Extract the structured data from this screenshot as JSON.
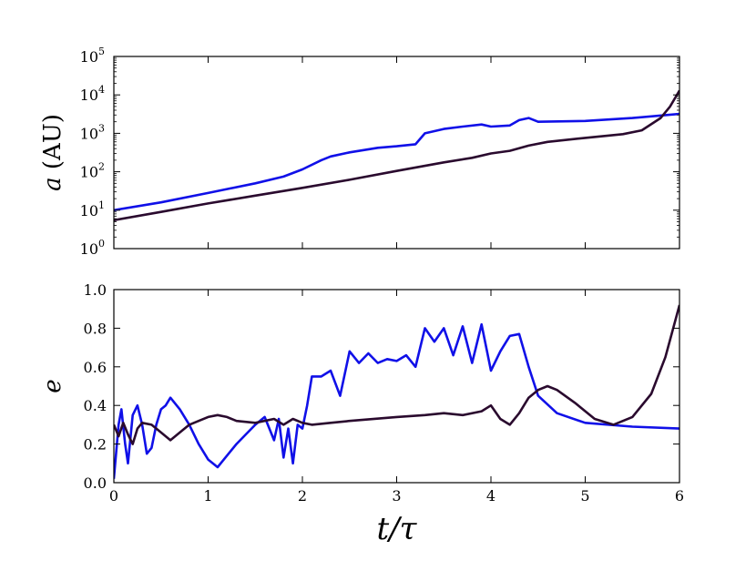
{
  "colors": {
    "series1": "#1010e8",
    "series2": "#2a0a2e"
  },
  "chart_data": [
    {
      "type": "line",
      "xlim": [
        0,
        6
      ],
      "ylim_log10": [
        0,
        5
      ],
      "yscale": "log",
      "ylabel_italic": "a",
      "ylabel_rest": " (AU)",
      "xlabel": "",
      "xticks": [
        0,
        1,
        2,
        3,
        4,
        5,
        6
      ],
      "yticks": [
        {
          "base": "10",
          "exp": "0",
          "v": 0
        },
        {
          "base": "10",
          "exp": "1",
          "v": 1
        },
        {
          "base": "10",
          "exp": "2",
          "v": 2
        },
        {
          "base": "10",
          "exp": "3",
          "v": 3
        },
        {
          "base": "10",
          "exp": "4",
          "v": 4
        },
        {
          "base": "10",
          "exp": "5",
          "v": 5
        }
      ],
      "grid": false,
      "series": [
        {
          "color": "#1010e8",
          "points": [
            [
              0,
              10
            ],
            [
              0.5,
              16
            ],
            [
              1,
              28
            ],
            [
              1.5,
              50
            ],
            [
              1.8,
              75
            ],
            [
              2.0,
              115
            ],
            [
              2.2,
              200
            ],
            [
              2.3,
              250
            ],
            [
              2.5,
              320
            ],
            [
              2.8,
              420
            ],
            [
              3.0,
              460
            ],
            [
              3.2,
              520
            ],
            [
              3.3,
              1000
            ],
            [
              3.5,
              1300
            ],
            [
              3.7,
              1500
            ],
            [
              3.9,
              1700
            ],
            [
              4.0,
              1500
            ],
            [
              4.2,
              1600
            ],
            [
              4.3,
              2200
            ],
            [
              4.4,
              2500
            ],
            [
              4.5,
              2000
            ],
            [
              5.0,
              2100
            ],
            [
              5.5,
              2500
            ],
            [
              6.0,
              3200
            ]
          ]
        },
        {
          "color": "#2a0a2e",
          "points": [
            [
              0,
              5.5
            ],
            [
              0.5,
              9
            ],
            [
              1,
              15
            ],
            [
              1.5,
              24
            ],
            [
              2,
              38
            ],
            [
              2.5,
              62
            ],
            [
              3,
              105
            ],
            [
              3.5,
              175
            ],
            [
              3.8,
              230
            ],
            [
              4.0,
              300
            ],
            [
              4.2,
              350
            ],
            [
              4.4,
              480
            ],
            [
              4.6,
              600
            ],
            [
              5.0,
              760
            ],
            [
              5.4,
              950
            ],
            [
              5.6,
              1200
            ],
            [
              5.8,
              2500
            ],
            [
              5.9,
              5000
            ],
            [
              6.0,
              13000
            ]
          ]
        }
      ]
    },
    {
      "type": "line",
      "xlim": [
        0,
        6
      ],
      "ylim": [
        0,
        1
      ],
      "ylabel": "e",
      "xlabel": "t/τ",
      "xticks": [
        0,
        1,
        2,
        3,
        4,
        5,
        6
      ],
      "yticks": [
        "0.0",
        "0.2",
        "0.4",
        "0.6",
        "0.8",
        "1.0"
      ],
      "grid": false,
      "series": [
        {
          "color": "#1010e8",
          "points": [
            [
              0,
              0.02
            ],
            [
              0.05,
              0.3
            ],
            [
              0.08,
              0.38
            ],
            [
              0.12,
              0.2
            ],
            [
              0.15,
              0.1
            ],
            [
              0.2,
              0.35
            ],
            [
              0.25,
              0.4
            ],
            [
              0.3,
              0.3
            ],
            [
              0.35,
              0.15
            ],
            [
              0.4,
              0.18
            ],
            [
              0.45,
              0.3
            ],
            [
              0.5,
              0.38
            ],
            [
              0.55,
              0.4
            ],
            [
              0.6,
              0.44
            ],
            [
              0.7,
              0.38
            ],
            [
              0.8,
              0.3
            ],
            [
              0.9,
              0.2
            ],
            [
              1.0,
              0.12
            ],
            [
              1.1,
              0.08
            ],
            [
              1.2,
              0.14
            ],
            [
              1.3,
              0.2
            ],
            [
              1.4,
              0.25
            ],
            [
              1.5,
              0.3
            ],
            [
              1.6,
              0.34
            ],
            [
              1.7,
              0.22
            ],
            [
              1.75,
              0.33
            ],
            [
              1.8,
              0.13
            ],
            [
              1.85,
              0.28
            ],
            [
              1.9,
              0.1
            ],
            [
              1.95,
              0.3
            ],
            [
              2.0,
              0.28
            ],
            [
              2.05,
              0.4
            ],
            [
              2.1,
              0.55
            ],
            [
              2.2,
              0.55
            ],
            [
              2.3,
              0.58
            ],
            [
              2.4,
              0.45
            ],
            [
              2.5,
              0.68
            ],
            [
              2.6,
              0.62
            ],
            [
              2.7,
              0.67
            ],
            [
              2.8,
              0.62
            ],
            [
              2.9,
              0.64
            ],
            [
              3.0,
              0.63
            ],
            [
              3.1,
              0.66
            ],
            [
              3.2,
              0.6
            ],
            [
              3.3,
              0.8
            ],
            [
              3.4,
              0.73
            ],
            [
              3.5,
              0.8
            ],
            [
              3.6,
              0.66
            ],
            [
              3.7,
              0.81
            ],
            [
              3.8,
              0.62
            ],
            [
              3.9,
              0.82
            ],
            [
              4.0,
              0.58
            ],
            [
              4.1,
              0.68
            ],
            [
              4.2,
              0.76
            ],
            [
              4.3,
              0.77
            ],
            [
              4.4,
              0.6
            ],
            [
              4.5,
              0.45
            ],
            [
              4.7,
              0.36
            ],
            [
              5.0,
              0.31
            ],
            [
              5.5,
              0.29
            ],
            [
              6.0,
              0.28
            ]
          ]
        },
        {
          "color": "#2a0a2e",
          "points": [
            [
              0,
              0.3
            ],
            [
              0.05,
              0.24
            ],
            [
              0.1,
              0.31
            ],
            [
              0.15,
              0.25
            ],
            [
              0.2,
              0.2
            ],
            [
              0.25,
              0.28
            ],
            [
              0.3,
              0.31
            ],
            [
              0.4,
              0.3
            ],
            [
              0.5,
              0.26
            ],
            [
              0.6,
              0.22
            ],
            [
              0.7,
              0.26
            ],
            [
              0.8,
              0.3
            ],
            [
              0.9,
              0.32
            ],
            [
              1.0,
              0.34
            ],
            [
              1.1,
              0.35
            ],
            [
              1.2,
              0.34
            ],
            [
              1.3,
              0.32
            ],
            [
              1.5,
              0.31
            ],
            [
              1.7,
              0.33
            ],
            [
              1.8,
              0.3
            ],
            [
              1.9,
              0.33
            ],
            [
              2.0,
              0.31
            ],
            [
              2.1,
              0.3
            ],
            [
              2.3,
              0.31
            ],
            [
              2.5,
              0.32
            ],
            [
              3.0,
              0.34
            ],
            [
              3.3,
              0.35
            ],
            [
              3.5,
              0.36
            ],
            [
              3.7,
              0.35
            ],
            [
              3.9,
              0.37
            ],
            [
              4.0,
              0.4
            ],
            [
              4.1,
              0.33
            ],
            [
              4.2,
              0.3
            ],
            [
              4.3,
              0.36
            ],
            [
              4.4,
              0.44
            ],
            [
              4.5,
              0.48
            ],
            [
              4.6,
              0.5
            ],
            [
              4.7,
              0.48
            ],
            [
              4.9,
              0.41
            ],
            [
              5.1,
              0.33
            ],
            [
              5.3,
              0.3
            ],
            [
              5.5,
              0.34
            ],
            [
              5.7,
              0.46
            ],
            [
              5.85,
              0.65
            ],
            [
              6.0,
              0.92
            ]
          ]
        }
      ]
    }
  ]
}
